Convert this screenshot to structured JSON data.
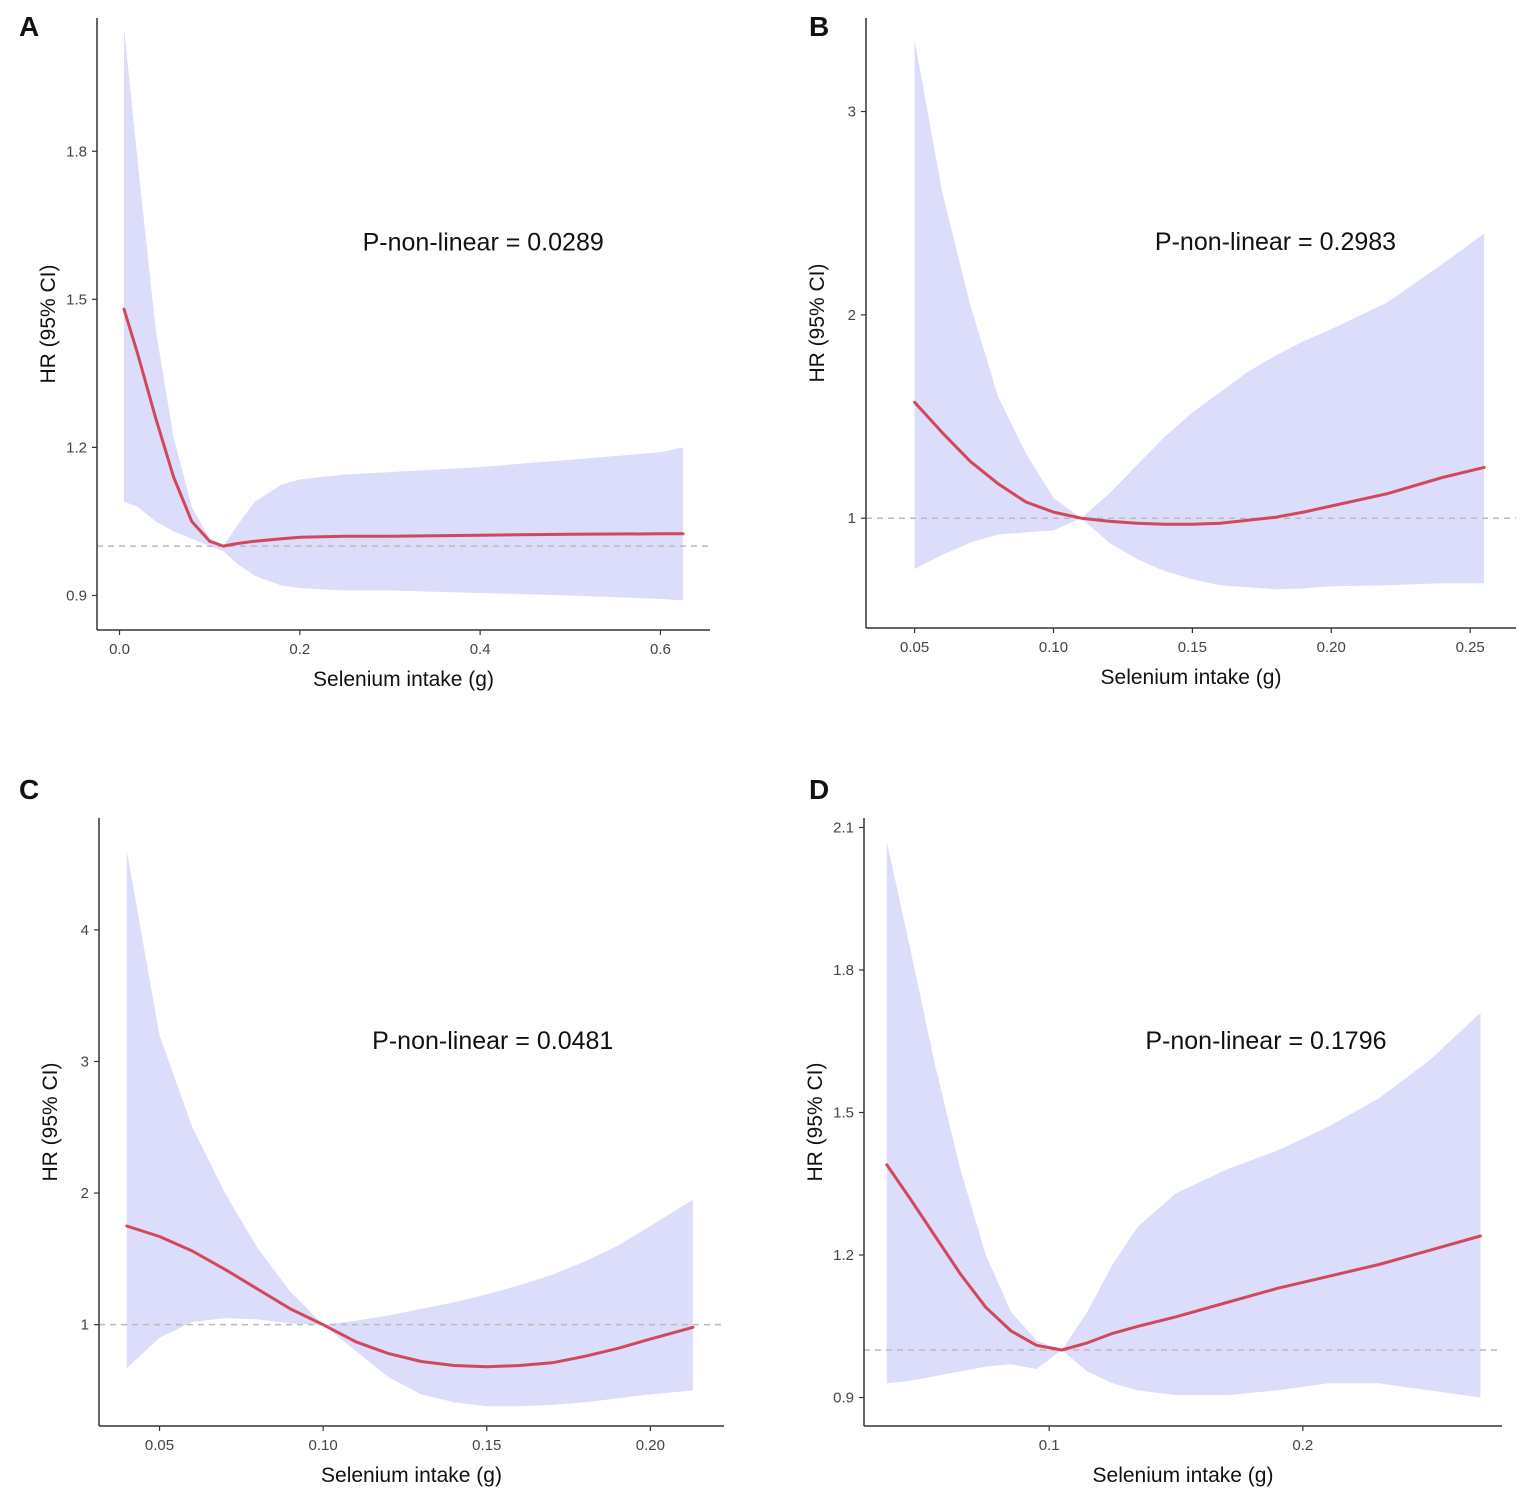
{
  "chart_data": [
    {
      "panel": "A",
      "type": "line",
      "xlabel": "Selenium intake (g)",
      "ylabel": "HR (95% CI)",
      "annotation": "P-non-linear = 0.0289",
      "xlim": [
        -0.025,
        0.655
      ],
      "ylim": [
        0.83,
        2.07
      ],
      "xticks": [
        0.0,
        0.2,
        0.4,
        0.6
      ],
      "xtick_labels": [
        "0.0",
        "0.2",
        "0.4",
        "0.6"
      ],
      "yticks": [
        0.9,
        1.2,
        1.5,
        1.8
      ],
      "ytick_labels": [
        "0.9",
        "1.2",
        "1.5",
        "1.8"
      ],
      "reference_line": 1,
      "colors": {
        "line": "#d2485a",
        "band": "#dcdcfb",
        "ref": "#bbbbbb"
      },
      "x": [
        0.005,
        0.02,
        0.04,
        0.06,
        0.08,
        0.1,
        0.115,
        0.13,
        0.15,
        0.18,
        0.2,
        0.25,
        0.3,
        0.4,
        0.5,
        0.6,
        0.625
      ],
      "hr": [
        1.48,
        1.39,
        1.26,
        1.14,
        1.05,
        1.01,
        1.0,
        1.005,
        1.01,
        1.015,
        1.018,
        1.02,
        1.02,
        1.022,
        1.024,
        1.025,
        1.025
      ],
      "lower": [
        1.09,
        1.08,
        1.05,
        1.03,
        1.015,
        1.0,
        0.99,
        0.965,
        0.94,
        0.92,
        0.915,
        0.91,
        0.91,
        0.905,
        0.9,
        0.893,
        0.89
      ],
      "upper": [
        2.05,
        1.78,
        1.44,
        1.22,
        1.08,
        1.015,
        1.0,
        1.04,
        1.09,
        1.125,
        1.135,
        1.145,
        1.15,
        1.16,
        1.175,
        1.19,
        1.2
      ]
    },
    {
      "panel": "B",
      "type": "line",
      "xlabel": "Selenium intake (g)",
      "ylabel": "HR (95% CI)",
      "annotation": "P-non-linear = 0.2983",
      "xlim": [
        0.0325,
        0.2665
      ],
      "ylim": [
        0.46,
        3.46
      ],
      "xticks": [
        0.05,
        0.1,
        0.15,
        0.2,
        0.25
      ],
      "xtick_labels": [
        "0.05",
        "0.10",
        "0.15",
        "0.20",
        "0.25"
      ],
      "yticks": [
        1,
        2,
        3
      ],
      "ytick_labels": [
        "1",
        "2",
        "3"
      ],
      "reference_line": 1,
      "colors": {
        "line": "#d2485a",
        "band": "#dcdcfb",
        "ref": "#bbbbbb"
      },
      "x": [
        0.05,
        0.06,
        0.07,
        0.08,
        0.09,
        0.1,
        0.11,
        0.12,
        0.13,
        0.14,
        0.15,
        0.16,
        0.17,
        0.18,
        0.19,
        0.2,
        0.22,
        0.24,
        0.255
      ],
      "hr": [
        1.57,
        1.42,
        1.28,
        1.17,
        1.08,
        1.03,
        1.0,
        0.985,
        0.975,
        0.97,
        0.97,
        0.975,
        0.99,
        1.005,
        1.03,
        1.06,
        1.12,
        1.2,
        1.25
      ],
      "lower": [
        0.75,
        0.82,
        0.88,
        0.92,
        0.93,
        0.94,
        1.0,
        0.88,
        0.8,
        0.74,
        0.7,
        0.67,
        0.66,
        0.65,
        0.655,
        0.665,
        0.67,
        0.68,
        0.68
      ],
      "upper": [
        3.35,
        2.6,
        2.05,
        1.6,
        1.32,
        1.1,
        1.0,
        1.12,
        1.26,
        1.4,
        1.52,
        1.62,
        1.72,
        1.8,
        1.87,
        1.93,
        2.06,
        2.25,
        2.4
      ]
    },
    {
      "panel": "C",
      "type": "line",
      "xlabel": "Selenium intake (g)",
      "ylabel": "HR (95% CI)",
      "annotation": "P-non-linear = 0.0481",
      "xlim": [
        0.0315,
        0.2225
      ],
      "ylim": [
        0.23,
        4.85
      ],
      "xticks": [
        0.05,
        0.1,
        0.15,
        0.2
      ],
      "xtick_labels": [
        "0.05",
        "0.10",
        "0.15",
        "0.20"
      ],
      "yticks": [
        1,
        2,
        3,
        4
      ],
      "ytick_labels": [
        "1",
        "2",
        "3",
        "4"
      ],
      "reference_line": 1,
      "colors": {
        "line": "#d2485a",
        "band": "#dcdcfb",
        "ref": "#bbbbbb"
      },
      "x": [
        0.04,
        0.05,
        0.06,
        0.07,
        0.08,
        0.09,
        0.1,
        0.11,
        0.12,
        0.13,
        0.14,
        0.15,
        0.16,
        0.17,
        0.18,
        0.19,
        0.2,
        0.213
      ],
      "hr": [
        1.75,
        1.67,
        1.56,
        1.42,
        1.27,
        1.12,
        1.0,
        0.87,
        0.78,
        0.72,
        0.69,
        0.68,
        0.69,
        0.71,
        0.76,
        0.82,
        0.89,
        0.98
      ],
      "lower": [
        0.67,
        0.9,
        1.02,
        1.05,
        1.04,
        1.01,
        1.0,
        0.8,
        0.6,
        0.47,
        0.41,
        0.38,
        0.38,
        0.39,
        0.41,
        0.44,
        0.47,
        0.5
      ],
      "upper": [
        4.6,
        3.2,
        2.5,
        2.0,
        1.58,
        1.25,
        1.0,
        1.03,
        1.07,
        1.12,
        1.17,
        1.23,
        1.3,
        1.38,
        1.48,
        1.6,
        1.75,
        1.95
      ]
    },
    {
      "panel": "D",
      "type": "line",
      "xlabel": "Selenium intake (g)",
      "ylabel": "HR (95% CI)",
      "annotation": "P-non-linear = 0.1796",
      "xlim": [
        0.027,
        0.2785
      ],
      "ylim": [
        0.84,
        2.12
      ],
      "xticks": [
        0.1,
        0.2
      ],
      "xtick_labels": [
        "0.1",
        "0.2"
      ],
      "yticks": [
        0.9,
        1.2,
        1.5,
        1.8,
        2.1
      ],
      "ytick_labels": [
        "0.9",
        "1.2",
        "1.5",
        "1.8",
        "2.1"
      ],
      "reference_line": 1,
      "colors": {
        "line": "#d2485a",
        "band": "#dcdcfb",
        "ref": "#bbbbbb"
      },
      "x": [
        0.036,
        0.045,
        0.055,
        0.065,
        0.075,
        0.085,
        0.095,
        0.105,
        0.115,
        0.125,
        0.135,
        0.15,
        0.17,
        0.19,
        0.21,
        0.23,
        0.25,
        0.27
      ],
      "hr": [
        1.39,
        1.32,
        1.24,
        1.16,
        1.09,
        1.04,
        1.01,
        1.0,
        1.015,
        1.035,
        1.05,
        1.07,
        1.1,
        1.13,
        1.155,
        1.18,
        1.21,
        1.24
      ],
      "lower": [
        0.93,
        0.935,
        0.945,
        0.955,
        0.965,
        0.97,
        0.96,
        1.0,
        0.955,
        0.93,
        0.915,
        0.905,
        0.905,
        0.915,
        0.93,
        0.93,
        0.915,
        0.9
      ],
      "upper": [
        2.07,
        1.85,
        1.6,
        1.38,
        1.2,
        1.08,
        1.02,
        1.0,
        1.08,
        1.18,
        1.26,
        1.33,
        1.38,
        1.42,
        1.47,
        1.53,
        1.61,
        1.71
      ]
    }
  ]
}
